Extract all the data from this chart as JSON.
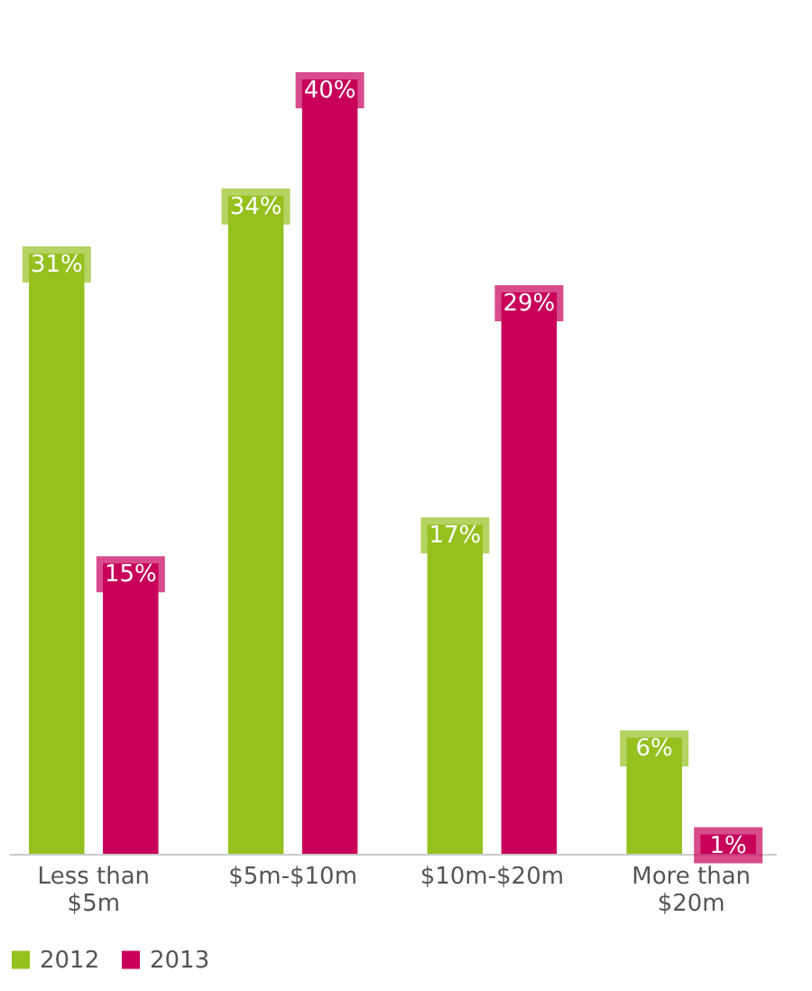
{
  "chart_data": {
    "type": "bar",
    "categories": [
      "Less than $5m",
      "$5m-$10m",
      "$10m-$20m",
      "More than $20m"
    ],
    "series": [
      {
        "name": "2012",
        "color": "#95c11f",
        "values": [
          31,
          34,
          17,
          6
        ],
        "value_labels": [
          "31%",
          "34%",
          "17%",
          "6%"
        ]
      },
      {
        "name": "2013",
        "color": "#c8005a",
        "values": [
          15,
          40,
          29,
          1
        ],
        "value_labels": [
          "15%",
          "40%",
          "29%",
          "1%"
        ]
      }
    ],
    "legend": "bottom",
    "grid": false,
    "tick_labels": "x"
  }
}
